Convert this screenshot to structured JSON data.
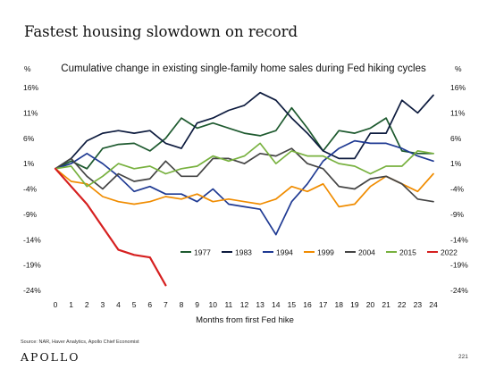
{
  "header": {
    "title": "Fastest housing slowdown on record"
  },
  "footer": {
    "source": "Source: NAR, Haver Analytics, Apollo Chief Economist",
    "logo": "APOLLO",
    "page_number": "221"
  },
  "chart_data": {
    "type": "line",
    "title": "Cumulative change in existing single-family home sales during Fed hiking cycles",
    "xlabel": "Months from first Fed hike",
    "y_unit_left": "%",
    "y_unit_right": "%",
    "ylim": [
      -24,
      16
    ],
    "yticks": [
      16,
      11,
      6,
      1,
      -4,
      -9,
      -14,
      -19,
      -24
    ],
    "ytick_labels": [
      "16%",
      "11%",
      "6%",
      "1%",
      "-4%",
      "-9%",
      "-14%",
      "-19%",
      "-24%"
    ],
    "x": [
      0,
      1,
      2,
      3,
      4,
      5,
      6,
      7,
      8,
      9,
      10,
      11,
      12,
      13,
      14,
      15,
      16,
      17,
      18,
      19,
      20,
      21,
      22,
      23,
      24
    ],
    "grid": false,
    "legend_position": "lower-right",
    "series": [
      {
        "name": "1977",
        "color": "#1e5a2f",
        "values": [
          0,
          1.5,
          0,
          4,
          4.8,
          5,
          3.5,
          6,
          10,
          8,
          9,
          8,
          7,
          6.5,
          7.5,
          12,
          8,
          3.5,
          7.5,
          7,
          8,
          10,
          3.5,
          3,
          3
        ]
      },
      {
        "name": "1983",
        "color": "#0d1b3e",
        "values": [
          0,
          2,
          5.5,
          7,
          7.5,
          7,
          7.5,
          5,
          4,
          9,
          10,
          11.5,
          12.5,
          15,
          13.5,
          10,
          7,
          3.5,
          2,
          2,
          7,
          7,
          13.5,
          11,
          14.5
        ]
      },
      {
        "name": "1994",
        "color": "#1f3a93",
        "values": [
          0,
          1,
          3,
          1,
          -1.5,
          -4.5,
          -3.5,
          -5,
          -5,
          -6.5,
          -4,
          -7,
          -7.5,
          -8,
          -13,
          -6.5,
          -3,
          1.5,
          4,
          5.5,
          5,
          5,
          4,
          2.5,
          1.5
        ]
      },
      {
        "name": "1999",
        "color": "#f08c00",
        "values": [
          0,
          -2.5,
          -3,
          -5.5,
          -6.5,
          -7,
          -6.5,
          -5.5,
          -6,
          -5,
          -6.5,
          -6,
          -6.5,
          -7,
          -6,
          -3.5,
          -4.5,
          -3,
          -7.5,
          -7,
          -3.5,
          -1.5,
          -3,
          -4.5,
          -1
        ]
      },
      {
        "name": "2004",
        "color": "#444444",
        "values": [
          0,
          2,
          -1.5,
          -4,
          -1,
          -2.5,
          -2,
          1.5,
          -1.5,
          -1.5,
          2,
          2,
          1,
          3,
          2.5,
          4,
          1,
          0,
          -3.5,
          -4,
          -2,
          -1.5,
          -3,
          -6,
          -6.5
        ]
      },
      {
        "name": "2015",
        "color": "#78b13f",
        "values": [
          0,
          0.5,
          -3.5,
          -1.5,
          1,
          0,
          0.5,
          -1,
          0,
          0.5,
          2.5,
          1.5,
          2.5,
          5,
          1,
          3.5,
          2.5,
          2.5,
          1,
          0.5,
          -1,
          0.5,
          0.5,
          3.5,
          3
        ]
      },
      {
        "name": "2022",
        "color": "#d62020",
        "values": [
          0,
          -3.5,
          -7,
          -11.5,
          -16,
          -17,
          -17.5,
          -23,
          null,
          null,
          null,
          null,
          null,
          null,
          null,
          null,
          null,
          null,
          null,
          null,
          null,
          null,
          null,
          null,
          null
        ]
      }
    ]
  }
}
